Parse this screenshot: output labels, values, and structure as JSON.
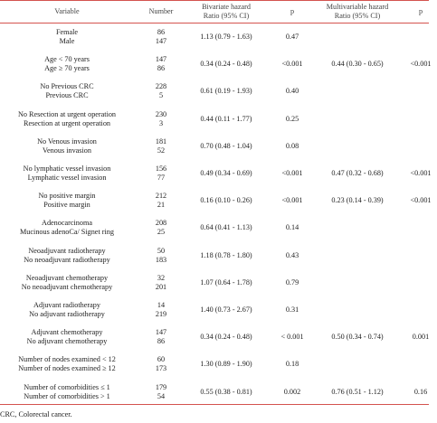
{
  "header": {
    "variable": "Variable",
    "number": "Number",
    "bivariate_line1": "Bivariate hazard",
    "bivariate_line2": "Ratio (95% CI)",
    "p1": "p",
    "multivariable_line1": "Multivariable hazard",
    "multivariable_line2": "Ratio (95% CI)",
    "p2": "p"
  },
  "rows": [
    {
      "a": "Female",
      "b": "Male",
      "na": "86",
      "nb": "147",
      "bhr": "1.13 (0.79 - 1.63)",
      "pb": "0.47",
      "mhr": "",
      "pm": ""
    },
    {
      "a": "Age < 70 years",
      "b": "Age ≥ 70 years",
      "na": "147",
      "nb": "86",
      "bhr": "0.34 (0.24 - 0.48)",
      "pb": "<0.001",
      "mhr": "0.44 (0.30 - 0.65)",
      "pm": "<0.001"
    },
    {
      "a": "No Previous CRC",
      "b": "Previous CRC",
      "na": "228",
      "nb": "5",
      "bhr": "0.61 (0.19 - 1.93)",
      "pb": "0.40",
      "mhr": "",
      "pm": ""
    },
    {
      "a": "No Resection at urgent operation",
      "b": "Resection at urgent operation",
      "na": "230",
      "nb": "3",
      "bhr": "0.44 (0.11 - 1.77)",
      "pb": "0.25",
      "mhr": "",
      "pm": ""
    },
    {
      "a": "No Venous invasion",
      "b": "Venous invasion",
      "na": "181",
      "nb": "52",
      "bhr": "0.70 (0.48 - 1.04)",
      "pb": "0.08",
      "mhr": "",
      "pm": ""
    },
    {
      "a": "No lymphatic vessel invasion",
      "b": "Lymphatic vessel invasion",
      "na": "156",
      "nb": "77",
      "bhr": "0.49 (0.34 - 0.69)",
      "pb": "<0.001",
      "mhr": "0.47 (0.32 - 0.68)",
      "pm": "<0.001"
    },
    {
      "a": "No positive margin",
      "b": "Positive margin",
      "na": "212",
      "nb": "21",
      "bhr": "0.16 (0.10 - 0.26)",
      "pb": "<0.001",
      "mhr": "0.23 (0.14 - 0.39)",
      "pm": "<0.001"
    },
    {
      "a": "Adenocarcinoma",
      "b": "Mucinous adenoCa/ Signet ring",
      "na": "208",
      "nb": "25",
      "bhr": "0.64 (0.41 - 1.13)",
      "pb": "0.14",
      "mhr": "",
      "pm": ""
    },
    {
      "a": "Neoadjuvant radiotherapy",
      "b": "No neoadjuvant radiotherapy",
      "na": "50",
      "nb": "183",
      "bhr": "1.18 (0.78 - 1.80)",
      "pb": "0.43",
      "mhr": "",
      "pm": ""
    },
    {
      "a": "Neoadjuvant chemotherapy",
      "b": "No neoadjuvant chemotherapy",
      "na": "32",
      "nb": "201",
      "bhr": "1.07 (0.64 - 1.78)",
      "pb": "0.79",
      "mhr": "",
      "pm": ""
    },
    {
      "a": "Adjuvant radiotherapy",
      "b": "No adjuvant radiotherapy",
      "na": "14",
      "nb": "219",
      "bhr": "1.40 (0.73 - 2.67)",
      "pb": "0.31",
      "mhr": "",
      "pm": ""
    },
    {
      "a": "Adjuvant chemotherapy",
      "b": "No adjuvant chemotherapy",
      "na": "147",
      "nb": "86",
      "bhr": "0.34 (0.24 - 0.48)",
      "pb": "< 0.001",
      "mhr": "0.50 (0.34 - 0.74)",
      "pm": "0.001"
    },
    {
      "a": "Number of nodes examined < 12",
      "b": "Number of nodes examined ≥ 12",
      "na": "60",
      "nb": "173",
      "bhr": "1.30 (0.89 - 1.90)",
      "pb": "0.18",
      "mhr": "",
      "pm": ""
    },
    {
      "a": "Number of comorbidities ≤ 1",
      "b": "Number of comorbidities > 1",
      "na": "179",
      "nb": "54",
      "bhr": "0.55 (0.38 - 0.81)",
      "pb": "0.002",
      "mhr": "0.76 (0.51 - 1.12)",
      "pm": "0.16"
    }
  ],
  "footnote": "CRC, Colorectal cancer."
}
